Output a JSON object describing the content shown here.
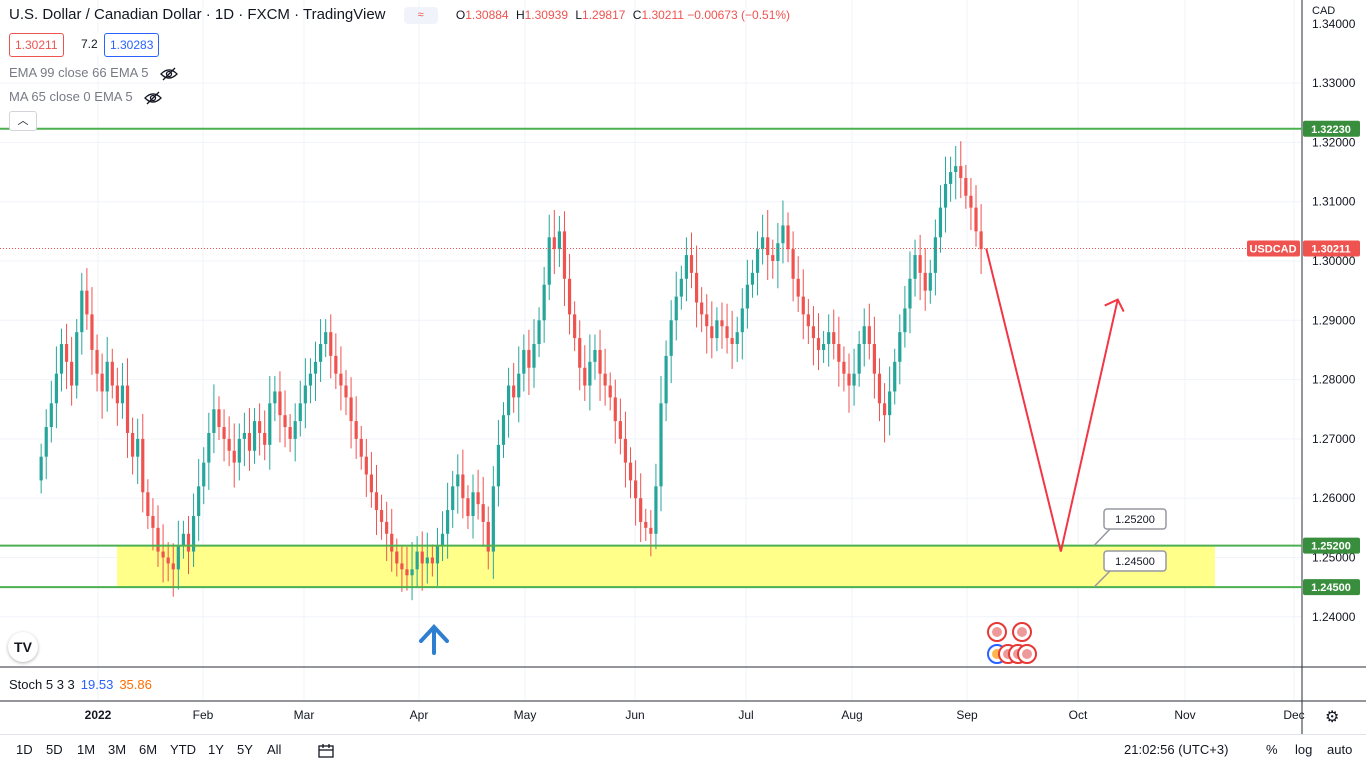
{
  "header": {
    "title": "U.S. Dollar / Canadian Dollar · 1D · FXCM · TradingView",
    "o_label": "O",
    "o": "1.30884",
    "h_label": "H",
    "h": "1.30939",
    "l_label": "L",
    "l": "1.29817",
    "c_label": "C",
    "c": "1.30211",
    "change": "−0.00673 (−0.51%)"
  },
  "quote": {
    "bid": "1.30211",
    "spread": "7.2",
    "ask": "1.30283"
  },
  "indicators": [
    {
      "label": "EMA 99 close 66 EMA 5"
    },
    {
      "label": "MA 65 close 0 EMA 5"
    }
  ],
  "symbol_tag": "USDCAD",
  "currency": "CAD",
  "stoch": {
    "label": "Stoch 5 3 3",
    "k": "19.53",
    "d": "35.86"
  },
  "timeframes": [
    "1D",
    "5D",
    "1M",
    "3M",
    "6M",
    "YTD",
    "1Y",
    "5Y",
    "All"
  ],
  "clock": "21:02:56 (UTC+3)",
  "bottom_right": {
    "percent": "%",
    "log": "log",
    "auto": "auto"
  },
  "colors": {
    "up": "#26a69a",
    "down": "#ef5350",
    "level": "#4caf50",
    "zone": "#ffff8a",
    "projection": "#f23645",
    "arrow": "#2f7fd0"
  },
  "chart_data": {
    "type": "candlestick",
    "x_ticks": [
      "2022",
      "Feb",
      "Mar",
      "Apr",
      "May",
      "Jun",
      "Jul",
      "Aug",
      "Sep",
      "Oct",
      "Nov",
      "Dec"
    ],
    "y_ticks": [
      "1.34000",
      "1.33000",
      "1.32000",
      "1.31000",
      "1.30000",
      "1.29000",
      "1.28000",
      "1.27000",
      "1.26000",
      "1.25000",
      "1.24000"
    ],
    "ylim": [
      1.233,
      1.343
    ],
    "levels": [
      "1.32230",
      "1.25200",
      "1.24500"
    ],
    "zone": [
      1.245,
      1.252
    ],
    "last_price": "1.30211",
    "callouts": [
      "1.25200",
      "1.24500"
    ],
    "projection": [
      {
        "date": "2022-09-08",
        "price": 1.3021
      },
      {
        "date": "2022-09-29",
        "price": 1.251
      },
      {
        "date": "2022-10-15",
        "price": 1.2935
      }
    ],
    "closes": [
      1.267,
      1.272,
      1.276,
      1.281,
      1.286,
      1.283,
      1.279,
      1.288,
      1.295,
      1.291,
      1.285,
      1.281,
      1.278,
      1.283,
      1.279,
      1.276,
      1.279,
      1.271,
      1.267,
      1.27,
      1.261,
      1.257,
      1.255,
      1.251,
      1.25,
      1.249,
      1.248,
      1.252,
      1.254,
      1.251,
      1.257,
      1.262,
      1.266,
      1.271,
      1.275,
      1.272,
      1.27,
      1.268,
      1.266,
      1.27,
      1.271,
      1.268,
      1.273,
      1.271,
      1.269,
      1.276,
      1.278,
      1.274,
      1.272,
      1.27,
      1.273,
      1.276,
      1.279,
      1.281,
      1.283,
      1.286,
      1.288,
      1.284,
      1.281,
      1.279,
      1.277,
      1.273,
      1.27,
      1.267,
      1.264,
      1.261,
      1.258,
      1.256,
      1.254,
      1.251,
      1.249,
      1.248,
      1.247,
      1.248,
      1.251,
      1.249,
      1.25,
      1.249,
      1.252,
      1.254,
      1.258,
      1.262,
      1.264,
      1.26,
      1.257,
      1.261,
      1.259,
      1.256,
      1.251,
      1.262,
      1.269,
      1.274,
      1.279,
      1.277,
      1.281,
      1.285,
      1.282,
      1.286,
      1.29,
      1.296,
      1.304,
      1.302,
      1.305,
      1.297,
      1.291,
      1.287,
      1.282,
      1.279,
      1.283,
      1.285,
      1.281,
      1.279,
      1.277,
      1.273,
      1.27,
      1.266,
      1.263,
      1.26,
      1.256,
      1.255,
      1.254,
      1.262,
      1.276,
      1.284,
      1.29,
      1.294,
      1.297,
      1.301,
      1.298,
      1.293,
      1.291,
      1.289,
      1.287,
      1.29,
      1.289,
      1.287,
      1.286,
      1.288,
      1.292,
      1.296,
      1.298,
      1.302,
      1.304,
      1.301,
      1.3,
      1.303,
      1.306,
      1.302,
      1.297,
      1.294,
      1.291,
      1.289,
      1.287,
      1.285,
      1.286,
      1.288,
      1.286,
      1.283,
      1.281,
      1.279,
      1.281,
      1.286,
      1.289,
      1.286,
      1.281,
      1.276,
      1.274,
      1.278,
      1.283,
      1.288,
      1.292,
      1.297,
      1.301,
      1.298,
      1.295,
      1.298,
      1.304,
      1.309,
      1.313,
      1.315,
      1.316,
      1.314,
      1.311,
      1.309,
      1.305,
      1.302
    ],
    "start_date": "2021-12-16",
    "step_days": 1.43
  }
}
